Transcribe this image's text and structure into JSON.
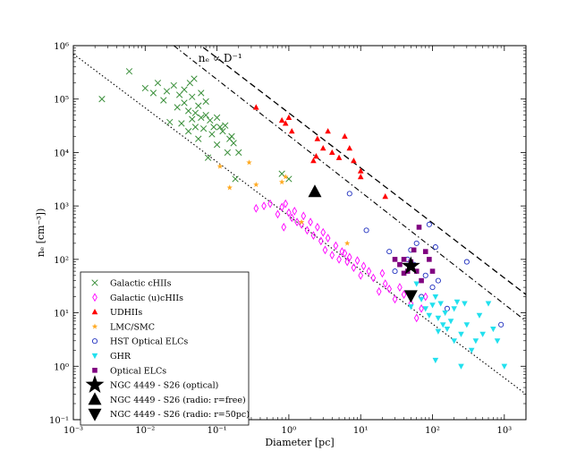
{
  "chart_data": {
    "type": "scatter",
    "xscale": "log",
    "yscale": "log",
    "xlim": [
      0.001,
      2000
    ],
    "ylim": [
      0.1,
      1000000
    ],
    "xlabel": "Diameter [pc]",
    "ylabel": "n_e [cm^-3])",
    "ylabel_display": "nₑ [cm⁻³])",
    "xticks": [
      {
        "value": 0.001,
        "label": "10⁻³"
      },
      {
        "value": 0.01,
        "label": "10⁻²"
      },
      {
        "value": 0.1,
        "label": "10⁻¹"
      },
      {
        "value": 1,
        "label": "10⁰"
      },
      {
        "value": 10,
        "label": "10¹"
      },
      {
        "value": 100,
        "label": "10²"
      },
      {
        "value": 1000,
        "label": "10³"
      }
    ],
    "yticks": [
      {
        "value": 0.1,
        "label": "10⁻¹"
      },
      {
        "value": 1,
        "label": "10⁰"
      },
      {
        "value": 10,
        "label": "10¹"
      },
      {
        "value": 100,
        "label": "10²"
      },
      {
        "value": 1000,
        "label": "10³"
      },
      {
        "value": 10000,
        "label": "10⁴"
      },
      {
        "value": 100000,
        "label": "10⁵"
      },
      {
        "value": 1000000,
        "label": "10⁶"
      }
    ],
    "annotation": {
      "text": "nₑ ∝ D⁻¹",
      "x": 0.055,
      "y": 500000
    },
    "lines": [
      {
        "name": "dashed",
        "style": "dashed",
        "points": [
          [
            0.05,
            1200000
          ],
          [
            2000,
            22
          ]
        ]
      },
      {
        "name": "dashdot",
        "style": "dashdot",
        "points": [
          [
            0.025,
            1000000
          ],
          [
            2000,
            7
          ]
        ]
      },
      {
        "name": "dotted",
        "style": "dotted",
        "points": [
          [
            0.001,
            700000
          ],
          [
            2000,
            0.3
          ]
        ]
      }
    ],
    "series": [
      {
        "name": "Galactic cHIIs",
        "marker": "x",
        "color": "#3a8f3a",
        "points": [
          [
            0.0025,
            100000
          ],
          [
            0.006,
            330000
          ],
          [
            0.01,
            160000
          ],
          [
            0.013,
            130000
          ],
          [
            0.015,
            200000
          ],
          [
            0.018,
            95000
          ],
          [
            0.02,
            140000
          ],
          [
            0.022,
            37000
          ],
          [
            0.025,
            180000
          ],
          [
            0.028,
            70000
          ],
          [
            0.03,
            120000
          ],
          [
            0.032,
            35000
          ],
          [
            0.035,
            150000
          ],
          [
            0.035,
            85000
          ],
          [
            0.04,
            60000
          ],
          [
            0.04,
            25000
          ],
          [
            0.042,
            200000
          ],
          [
            0.045,
            110000
          ],
          [
            0.045,
            42000
          ],
          [
            0.048,
            240000
          ],
          [
            0.05,
            55000
          ],
          [
            0.05,
            30000
          ],
          [
            0.055,
            75000
          ],
          [
            0.055,
            18000
          ],
          [
            0.06,
            130000
          ],
          [
            0.06,
            45000
          ],
          [
            0.065,
            28000
          ],
          [
            0.07,
            90000
          ],
          [
            0.07,
            50000
          ],
          [
            0.075,
            8000
          ],
          [
            0.08,
            40000
          ],
          [
            0.085,
            22000
          ],
          [
            0.09,
            30000
          ],
          [
            0.1,
            45000
          ],
          [
            0.1,
            14000
          ],
          [
            0.11,
            30000
          ],
          [
            0.12,
            25000
          ],
          [
            0.13,
            32000
          ],
          [
            0.14,
            10000
          ],
          [
            0.15,
            18000
          ],
          [
            0.16,
            20000
          ],
          [
            0.17,
            15000
          ],
          [
            0.18,
            3200
          ],
          [
            0.2,
            10000
          ],
          [
            0.8,
            4000
          ],
          [
            1.0,
            3200
          ]
        ]
      },
      {
        "name": "Galactic (u)cHIIs",
        "marker": "diamond",
        "color": "#ff00ff",
        "points": [
          [
            0.35,
            900
          ],
          [
            0.45,
            1000
          ],
          [
            0.55,
            1100
          ],
          [
            0.7,
            700
          ],
          [
            0.8,
            950
          ],
          [
            0.85,
            400
          ],
          [
            0.9,
            1100
          ],
          [
            1.0,
            750
          ],
          [
            1.1,
            600
          ],
          [
            1.2,
            800
          ],
          [
            1.3,
            500
          ],
          [
            1.5,
            450
          ],
          [
            1.6,
            650
          ],
          [
            1.8,
            350
          ],
          [
            2.0,
            500
          ],
          [
            2.2,
            280
          ],
          [
            2.5,
            400
          ],
          [
            2.8,
            220
          ],
          [
            3.0,
            320
          ],
          [
            3.2,
            150
          ],
          [
            3.5,
            250
          ],
          [
            4.0,
            120
          ],
          [
            4.5,
            180
          ],
          [
            5.0,
            100
          ],
          [
            5.5,
            140
          ],
          [
            6.0,
            130
          ],
          [
            6.5,
            90
          ],
          [
            7.0,
            110
          ],
          [
            8.0,
            70
          ],
          [
            9.0,
            95
          ],
          [
            10.0,
            50
          ],
          [
            11.0,
            75
          ],
          [
            13.0,
            60
          ],
          [
            15.0,
            45
          ],
          [
            18.0,
            25
          ],
          [
            20.0,
            55
          ],
          [
            22.0,
            35
          ],
          [
            25.0,
            28
          ],
          [
            30.0,
            18
          ],
          [
            35.0,
            30
          ],
          [
            40.0,
            22
          ],
          [
            50.0,
            15
          ],
          [
            60.0,
            8
          ],
          [
            70.0,
            12
          ],
          [
            80.0,
            20
          ]
        ]
      },
      {
        "name": "UDHIIs",
        "marker": "triangle-up",
        "color": "#ff0000",
        "points": [
          [
            0.35,
            70000
          ],
          [
            0.8,
            40000
          ],
          [
            0.9,
            35000
          ],
          [
            1.1,
            25000
          ],
          [
            1.0,
            45000
          ],
          [
            2.5,
            18000
          ],
          [
            3.5,
            25000
          ],
          [
            3.0,
            12000
          ],
          [
            2.2,
            7000
          ],
          [
            2.4,
            8500
          ],
          [
            4.0,
            10000
          ],
          [
            5.0,
            8000
          ],
          [
            6.0,
            20000
          ],
          [
            7.0,
            12000
          ],
          [
            8.0,
            7000
          ],
          [
            10.0,
            3500
          ],
          [
            10.0,
            4500
          ],
          [
            22.0,
            1500
          ]
        ]
      },
      {
        "name": "LMC/SMC",
        "marker": "star",
        "color": "#ffaa22",
        "points": [
          [
            0.11,
            5500
          ],
          [
            0.15,
            2200
          ],
          [
            0.28,
            6500
          ],
          [
            0.35,
            2500
          ],
          [
            0.8,
            2800
          ],
          [
            0.9,
            3500
          ],
          [
            1.5,
            500
          ],
          [
            6.5,
            200
          ]
        ]
      },
      {
        "name": "HST Optical ELCs",
        "marker": "circle",
        "color": "#1f2fbf",
        "points": [
          [
            7.0,
            1700
          ],
          [
            12.0,
            350
          ],
          [
            25.0,
            140
          ],
          [
            30.0,
            60
          ],
          [
            45.0,
            100
          ],
          [
            50.0,
            150
          ],
          [
            55.0,
            80
          ],
          [
            60.0,
            200
          ],
          [
            70.0,
            20
          ],
          [
            80.0,
            50
          ],
          [
            90.0,
            450
          ],
          [
            100.0,
            30
          ],
          [
            110.0,
            170
          ],
          [
            120.0,
            40
          ],
          [
            160.0,
            12
          ],
          [
            300.0,
            90
          ],
          [
            900.0,
            6
          ]
        ]
      },
      {
        "name": "GHR",
        "marker": "triangle-down",
        "color": "#22e0ee",
        "points": [
          [
            50.0,
            13
          ],
          [
            60.0,
            35
          ],
          [
            70.0,
            18
          ],
          [
            80.0,
            12
          ],
          [
            90.0,
            9
          ],
          [
            100.0,
            14
          ],
          [
            110.0,
            20
          ],
          [
            120.0,
            8
          ],
          [
            130.0,
            15
          ],
          [
            140.0,
            6
          ],
          [
            150.0,
            10
          ],
          [
            160.0,
            5
          ],
          [
            180.0,
            7
          ],
          [
            200.0,
            12
          ],
          [
            200.0,
            3
          ],
          [
            220.0,
            16
          ],
          [
            250.0,
            4
          ],
          [
            280.0,
            15
          ],
          [
            300.0,
            6
          ],
          [
            350.0,
            2
          ],
          [
            400.0,
            3
          ],
          [
            450.0,
            9
          ],
          [
            500.0,
            4
          ],
          [
            600.0,
            15
          ],
          [
            700.0,
            5
          ],
          [
            800.0,
            3
          ],
          [
            1000.0,
            1
          ],
          [
            250.0,
            1
          ],
          [
            110.0,
            1.3
          ],
          [
            120.0,
            4.5
          ]
        ]
      },
      {
        "name": "Optical ELCs",
        "marker": "square",
        "color": "#800080",
        "points": [
          [
            30.0,
            100
          ],
          [
            35.0,
            80
          ],
          [
            40.0,
            100
          ],
          [
            45.0,
            60
          ],
          [
            50.0,
            90
          ],
          [
            55.0,
            150
          ],
          [
            60.0,
            60
          ],
          [
            65.0,
            400
          ],
          [
            70.0,
            40
          ],
          [
            80.0,
            140
          ],
          [
            90.0,
            100
          ],
          [
            100.0,
            60
          ],
          [
            40.0,
            55
          ]
        ]
      },
      {
        "name": "NGC 4449 - S26 (optical)",
        "marker": "big-star",
        "color": "#000000",
        "points": [
          [
            50.0,
            75
          ]
        ]
      },
      {
        "name": "NGC 4449 - S26 (radio: r=free)",
        "marker": "big-triangle-up",
        "color": "#000000",
        "points": [
          [
            2.3,
            1850
          ]
        ]
      },
      {
        "name": "NGC 4449 - S26 (radio: r=50pc)",
        "marker": "big-triangle-down",
        "color": "#000000",
        "points": [
          [
            50.0,
            21
          ]
        ]
      }
    ],
    "legend": {
      "position": "bottom-left"
    }
  }
}
